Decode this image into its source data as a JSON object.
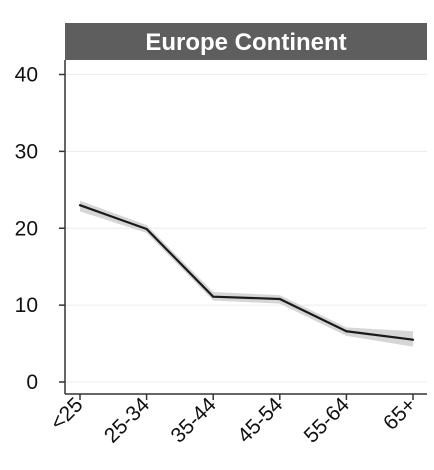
{
  "chart_data": {
    "type": "line",
    "title": "Europe Continent",
    "xlabel": "",
    "ylabel": "",
    "categories": [
      "<25",
      "25-34",
      "35-44",
      "45-54",
      "55-64",
      "65+"
    ],
    "series": [
      {
        "values": [
          23.0,
          19.9,
          11.1,
          10.8,
          6.6,
          5.5
        ],
        "ci_lower": [
          22.2,
          19.4,
          10.6,
          10.2,
          6.0,
          4.6
        ],
        "ci_upper": [
          23.6,
          20.4,
          11.7,
          11.3,
          7.1,
          6.6
        ]
      }
    ],
    "ylim": [
      0,
      40
    ],
    "yticks": [
      0,
      10,
      20,
      30,
      40
    ],
    "grid": true,
    "legend": "none",
    "colors": {
      "strip": "#5e5e5e",
      "line": "#1a1a1a",
      "ribbon": "#d6d6d6",
      "grid": "#ececec",
      "axis": "#333333"
    }
  }
}
